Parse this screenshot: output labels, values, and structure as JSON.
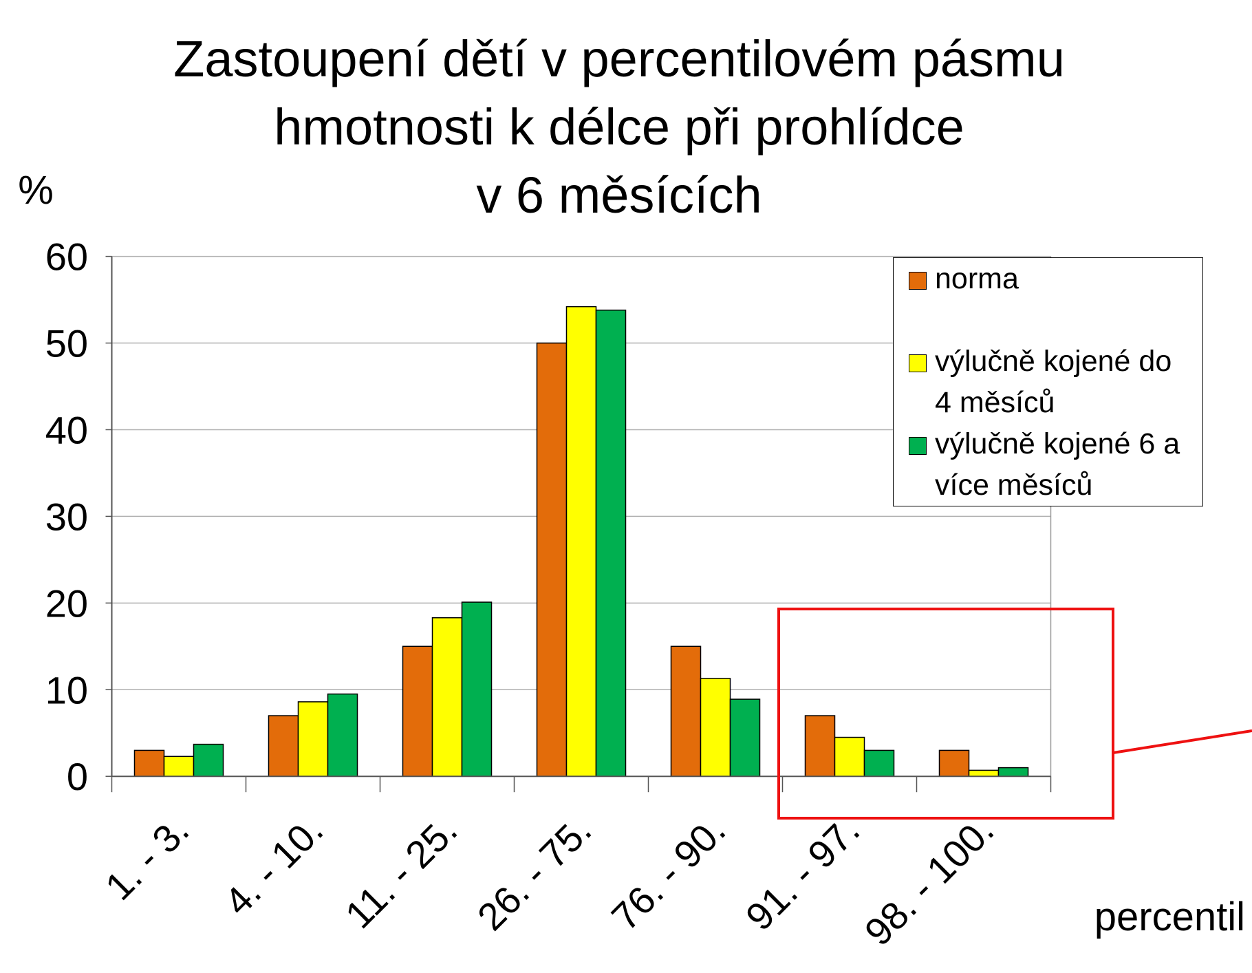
{
  "chart_data": {
    "type": "bar",
    "title": [
      "Zastoupení dětí v percentilovém pásmu",
      "hmotnosti k délce při prohlídce",
      "v 6 měsících"
    ],
    "y_label": "%",
    "x_label": "percentil",
    "categories": [
      "1. - 3.",
      "4. - 10.",
      "11. - 25.",
      "26. - 75.",
      "76. - 90.",
      "91. - 97.",
      "98. - 100."
    ],
    "series": [
      {
        "name": "norma",
        "color": "#e36c0a",
        "values": [
          3,
          7,
          15,
          50,
          15,
          7,
          3
        ]
      },
      {
        "name": "výlučně kojené do 4 měsíců",
        "color": "#ffff00",
        "values": [
          2.3,
          8.6,
          18.3,
          54.2,
          11.3,
          4.5,
          0.7
        ]
      },
      {
        "name": "výlučně kojené 6 a více měsíců",
        "color": "#00b050",
        "values": [
          3.7,
          9.5,
          20.1,
          53.8,
          8.9,
          3,
          1
        ]
      }
    ],
    "ylim": [
      0,
      60
    ],
    "yticks": [
      0,
      10,
      20,
      30,
      40,
      50,
      60
    ],
    "grid": true
  }
}
